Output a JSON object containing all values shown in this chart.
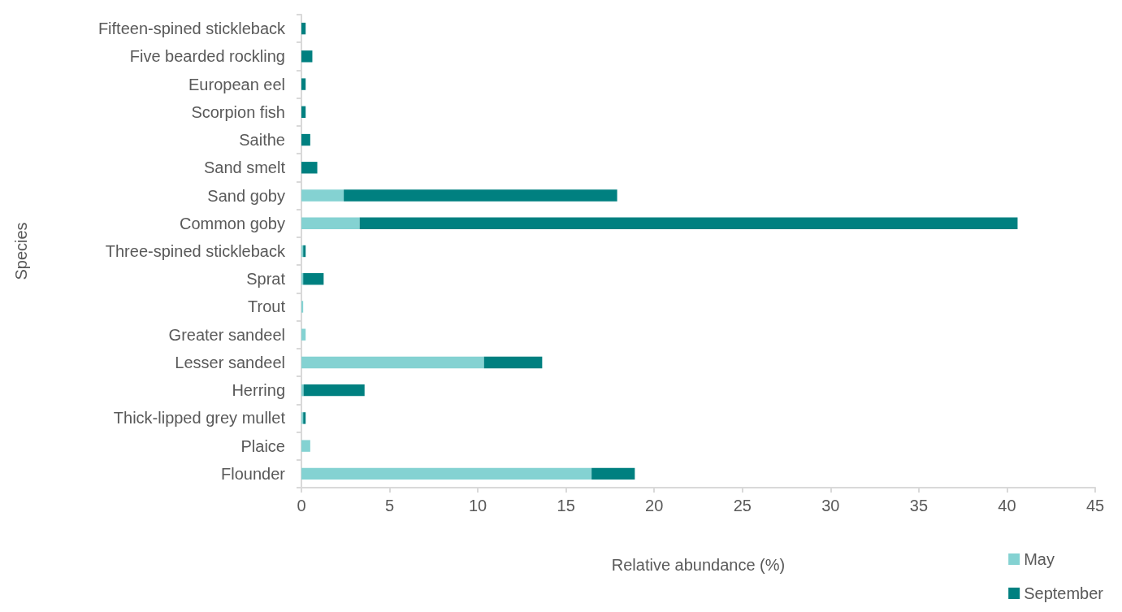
{
  "chart_data": {
    "type": "bar",
    "orientation": "horizontal",
    "stacked": true,
    "xlabel": "Relative abundance (%)",
    "ylabel": "Species",
    "categories": [
      "Fifteen-spined stickleback",
      "Five bearded rockling",
      "European eel",
      "Scorpion fish",
      "Saithe",
      "Sand smelt",
      "Sand goby",
      "Common goby",
      "Three-spined stickleback",
      "Sprat",
      "Trout",
      "Greater sandeel",
      "Lesser sandeel",
      "Herring",
      "Thick-lipped grey mullet",
      "Plaice",
      "Flounder"
    ],
    "series": [
      {
        "name": "May",
        "color": "#84d2d2",
        "values": [
          0,
          0,
          0,
          0,
          0,
          0,
          2.4,
          3.3,
          0.1,
          0.1,
          0.1,
          0.24,
          10.35,
          0.12,
          0.1,
          0.5,
          16.45
        ]
      },
      {
        "name": "September",
        "color": "#008080",
        "values": [
          0.24,
          0.62,
          0.24,
          0.24,
          0.5,
          0.9,
          15.5,
          37.3,
          0.14,
          1.16,
          0,
          0,
          3.3,
          3.46,
          0.14,
          0,
          2.45
        ]
      }
    ],
    "xlim": [
      0,
      45
    ],
    "xticks": [
      0,
      5,
      10,
      15,
      20,
      25,
      30,
      35,
      40,
      45
    ],
    "grid": false,
    "legend": "bottom right"
  }
}
